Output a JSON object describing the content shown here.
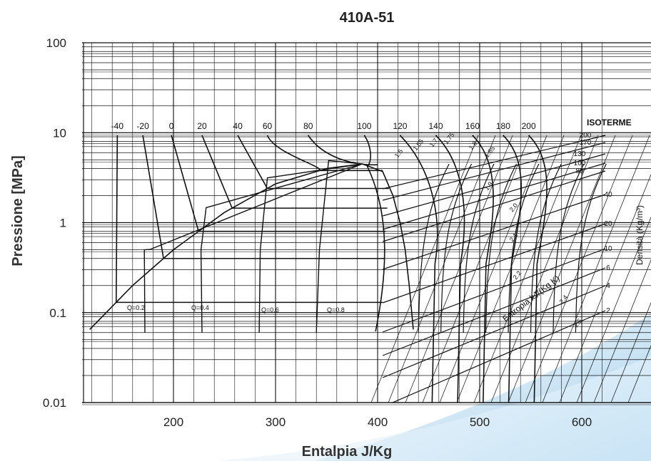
{
  "chart_data": {
    "type": "line",
    "title": "410A-51",
    "xlabel": "Entalpia J/Kg",
    "ylabel": "Pressione [MPa]",
    "y_scale": "log",
    "xlim": [
      115,
      620
    ],
    "ylim": [
      0.01,
      100
    ],
    "x_ticks": [
      "200",
      "300",
      "400",
      "500",
      "600"
    ],
    "y_ticks": [
      "100",
      "10",
      "1",
      "0.1",
      "0.01"
    ],
    "grid": true,
    "isotherm_title": "ISOTERME",
    "isotherms": [
      {
        "label": "-40",
        "x": 145
      },
      {
        "label": "-20",
        "x": 170
      },
      {
        "label": "0",
        "x": 198
      },
      {
        "label": "20",
        "x": 228
      },
      {
        "label": "40",
        "x": 263
      },
      {
        "label": "60",
        "x": 292
      },
      {
        "label": "80",
        "x": 332
      },
      {
        "label": "100",
        "x": 387
      },
      {
        "label": "120",
        "x": 422
      },
      {
        "label": "140",
        "x": 457
      },
      {
        "label": "160",
        "x": 493
      },
      {
        "label": "180",
        "x": 523
      },
      {
        "label": "200",
        "x": 548
      }
    ],
    "quality_lines": [
      {
        "label": "Q=0.2",
        "x": 170,
        "y": 0.11
      },
      {
        "label": "Q=0.4",
        "x": 235,
        "y": 0.11
      },
      {
        "label": "Q=0.6",
        "x": 297,
        "y": 0.11
      },
      {
        "label": "Q=0.8",
        "x": 355,
        "y": 0.11
      }
    ],
    "saturation_dome": {
      "liquid": [
        [
          118,
          0.065
        ],
        [
          160,
          0.2
        ],
        [
          200,
          0.5
        ],
        [
          250,
          1.3
        ],
        [
          300,
          2.7
        ],
        [
          350,
          4.0
        ],
        [
          385,
          4.5
        ]
      ],
      "vapor": [
        [
          385,
          4.5
        ],
        [
          405,
          3.7
        ],
        [
          415,
          2.0
        ],
        [
          422,
          1.0
        ],
        [
          427,
          0.5
        ],
        [
          431,
          0.2
        ],
        [
          435,
          0.065
        ]
      ]
    },
    "density_title": "Densità (Kg/m³)",
    "density_labels": [
      "200",
      "170",
      "130",
      "100",
      "80",
      "40",
      "20",
      "10",
      "6",
      "4",
      "2"
    ],
    "entropy_title": "Entropia kJ/(Kg K)",
    "entropy_labels": [
      "1.5",
      "1.55",
      "1.7",
      "1.75",
      "1.8",
      "1.85",
      "1.9",
      "2.0",
      "2.1",
      "2.2",
      "2.4",
      "2.5"
    ]
  }
}
